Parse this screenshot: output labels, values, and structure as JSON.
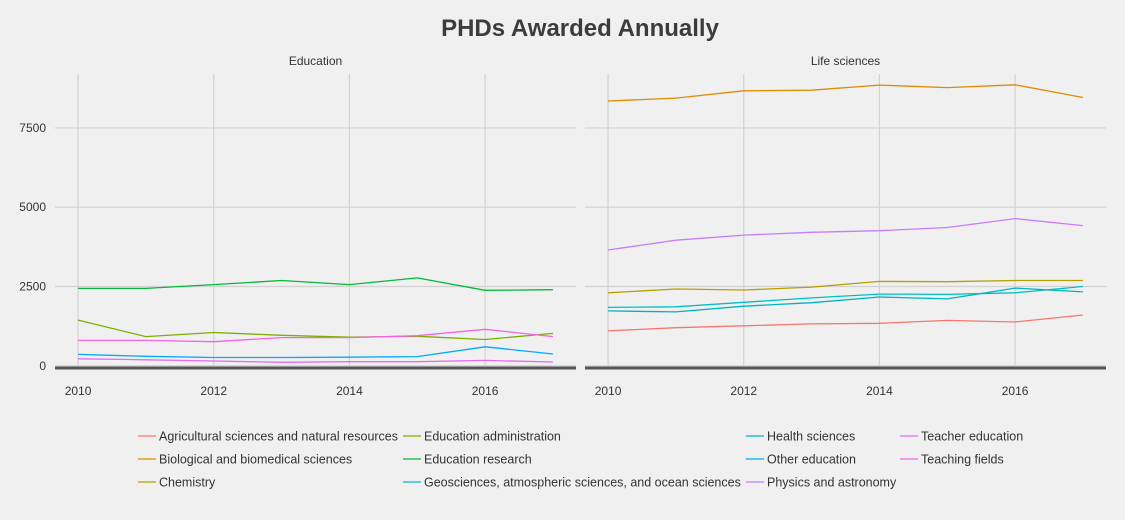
{
  "chart_data": {
    "type": "line",
    "title": "PHDs Awarded Annually",
    "x": [
      2010,
      2011,
      2012,
      2013,
      2014,
      2015,
      2016,
      2017
    ],
    "xticks": [
      2010,
      2012,
      2014,
      2016
    ],
    "ylim": [
      0,
      9200
    ],
    "yticks": [
      0,
      2500,
      5000,
      7500
    ],
    "grid": true,
    "legend_position": "bottom",
    "facets": [
      {
        "label": "Education",
        "series": [
          {
            "name": "Education administration",
            "color": "#7cae00",
            "values": [
              1440,
              920,
              1050,
              960,
              900,
              930,
              830,
              1020
            ]
          },
          {
            "name": "Education research",
            "color": "#00ba38",
            "values": [
              2440,
              2440,
              2560,
              2690,
              2560,
              2770,
              2380,
              2400
            ]
          },
          {
            "name": "Teaching fields",
            "color": "#f564e3",
            "values": [
              800,
              800,
              760,
              890,
              890,
              950,
              1150,
              920
            ]
          },
          {
            "name": "Other education",
            "color": "#00a9ff",
            "values": [
              360,
              300,
              260,
              260,
              270,
              290,
              600,
              370
            ]
          },
          {
            "name": "Teacher education",
            "color": "#e76bf3",
            "values": [
              220,
              190,
              150,
              110,
              130,
              130,
              170,
              120
            ]
          }
        ]
      },
      {
        "label": "Life sciences",
        "series": [
          {
            "name": "Biological and biomedical sciences",
            "color": "#de8c00",
            "values": [
              8350,
              8440,
              8670,
              8690,
              8850,
              8770,
              8860,
              8460
            ]
          },
          {
            "name": "Physics and astronomy",
            "color": "#c77cff",
            "values": [
              3650,
              3960,
              4120,
              4210,
              4260,
              4360,
              4640,
              4420
            ]
          },
          {
            "name": "Chemistry",
            "color": "#b79f00",
            "values": [
              2300,
              2420,
              2390,
              2480,
              2660,
              2650,
              2690,
              2690
            ]
          },
          {
            "name": "Geosciences, atmospheric sciences, and ocean sciences",
            "color": "#00bfc4",
            "values": [
              1840,
              1860,
              2000,
              2140,
              2260,
              2250,
              2300,
              2500
            ]
          },
          {
            "name": "Health sciences",
            "color": "#00b4c4",
            "values": [
              1730,
              1700,
              1880,
              1990,
              2170,
              2110,
              2450,
              2330
            ]
          },
          {
            "name": "Agricultural sciences and natural resources",
            "color": "#f8766d",
            "values": [
              1100,
              1200,
              1260,
              1320,
              1340,
              1430,
              1380,
              1600
            ]
          }
        ]
      }
    ],
    "legend": [
      {
        "name": "Agricultural sciences and natural resources",
        "color": "#f8766d"
      },
      {
        "name": "Biological and biomedical sciences",
        "color": "#de8c00"
      },
      {
        "name": "Chemistry",
        "color": "#b79f00"
      },
      {
        "name": "Education administration",
        "color": "#7cae00"
      },
      {
        "name": "Education research",
        "color": "#00ba38"
      },
      {
        "name": "Geosciences, atmospheric sciences, and ocean sciences",
        "color": "#00bfc4"
      },
      {
        "name": "Health sciences",
        "color": "#00b4c4"
      },
      {
        "name": "Other education",
        "color": "#00a9ff"
      },
      {
        "name": "Physics and astronomy",
        "color": "#c77cff"
      },
      {
        "name": "Teacher education",
        "color": "#e76bf3"
      },
      {
        "name": "Teaching fields",
        "color": "#f564e3"
      }
    ]
  }
}
